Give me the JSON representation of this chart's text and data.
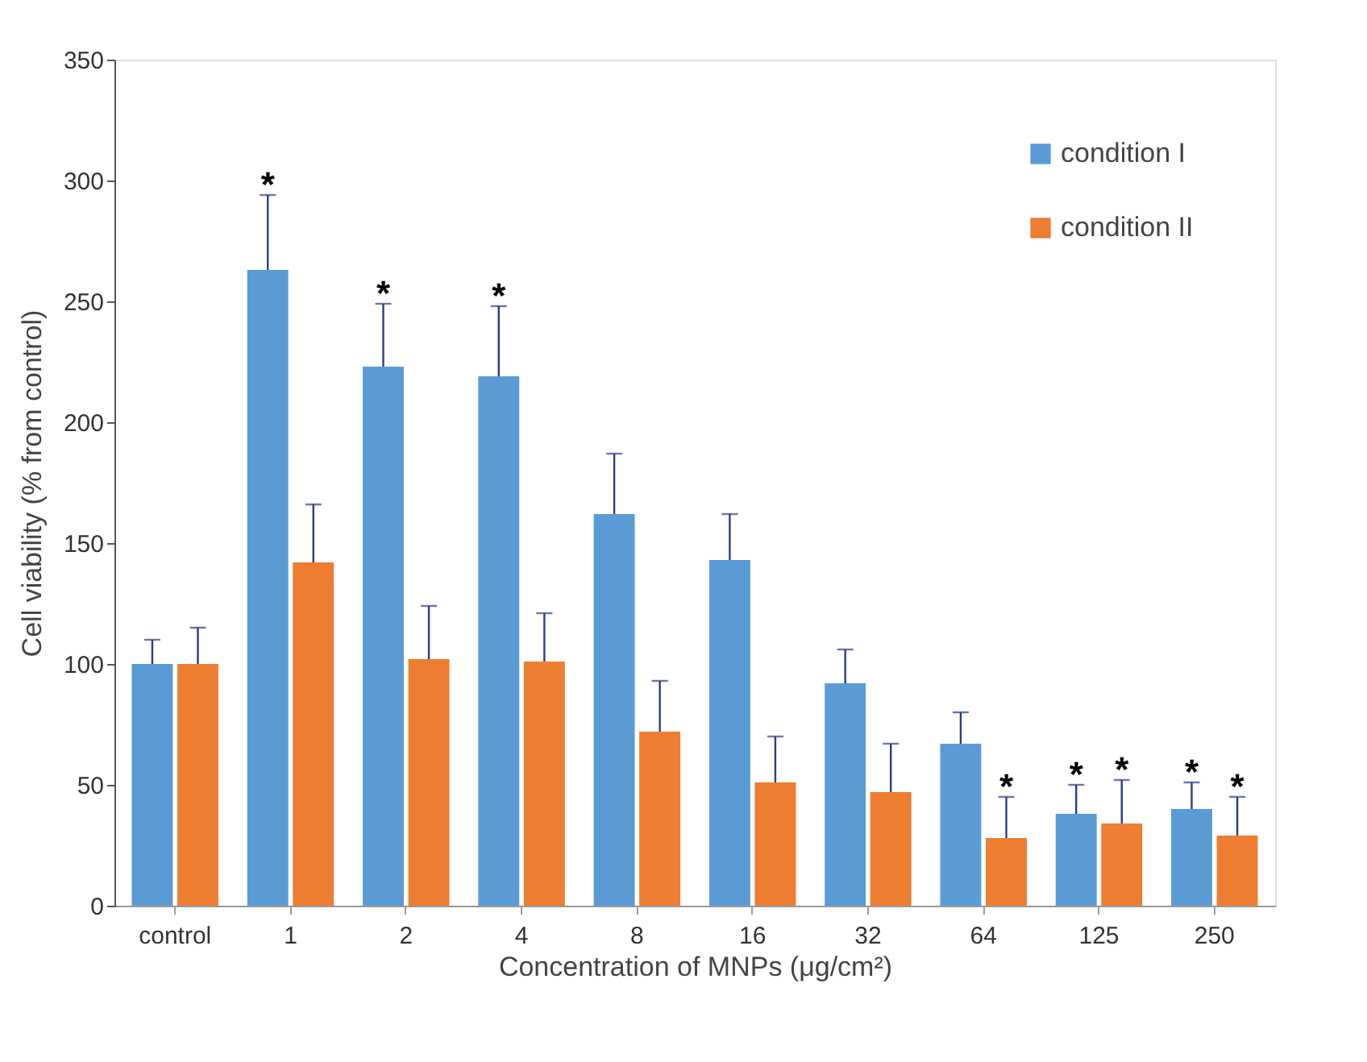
{
  "chart_data": {
    "type": "bar",
    "xlabel": "Concentration of MNPs (μg/cm²)",
    "ylabel": "Cell viability (% from control)",
    "categories": [
      "control",
      "1",
      "2",
      "4",
      "8",
      "16",
      "32",
      "64",
      "125",
      "250"
    ],
    "series": [
      {
        "name": "condition I",
        "color": "#5b9bd5",
        "values": [
          100,
          263,
          223,
          219,
          162,
          143,
          92,
          67,
          38,
          40
        ],
        "errors": [
          [
            100,
            110
          ],
          [
            263,
            294
          ],
          [
            223,
            249
          ],
          [
            219,
            248
          ],
          [
            162,
            187
          ],
          [
            143,
            162
          ],
          [
            92,
            106
          ],
          [
            67,
            80
          ],
          [
            38,
            50
          ],
          [
            40,
            51
          ]
        ]
      },
      {
        "name": "condition II",
        "color": "#ed7d31",
        "values": [
          100,
          142,
          102,
          101,
          72,
          51,
          47,
          28,
          34,
          29
        ],
        "errors": [
          [
            100,
            115
          ],
          [
            142,
            166
          ],
          [
            102,
            124
          ],
          [
            101,
            121
          ],
          [
            72,
            93
          ],
          [
            51,
            70
          ],
          [
            47,
            67
          ],
          [
            28,
            45
          ],
          [
            34,
            52
          ],
          [
            29,
            45
          ]
        ]
      }
    ],
    "ylim": [
      0,
      350
    ],
    "yticks": [
      0,
      50,
      100,
      150,
      200,
      250,
      300,
      350
    ],
    "grid": false,
    "legend": "top right",
    "annotations": [
      {
        "text": "*",
        "x": "1",
        "y": 263
      },
      {
        "text": "*",
        "x": "2",
        "y": 223
      },
      {
        "text": "*",
        "x": "4",
        "y": 219
      },
      {
        "text": "*",
        "x": "64",
        "y": 28
      },
      {
        "text": "*",
        "x": "125",
        "y": 38
      },
      {
        "text": "*",
        "x": "125",
        "y": 34
      },
      {
        "text": "*",
        "x": "250",
        "y": 40
      },
      {
        "text": "*",
        "x": "250",
        "y": 29
      }
    ]
  }
}
